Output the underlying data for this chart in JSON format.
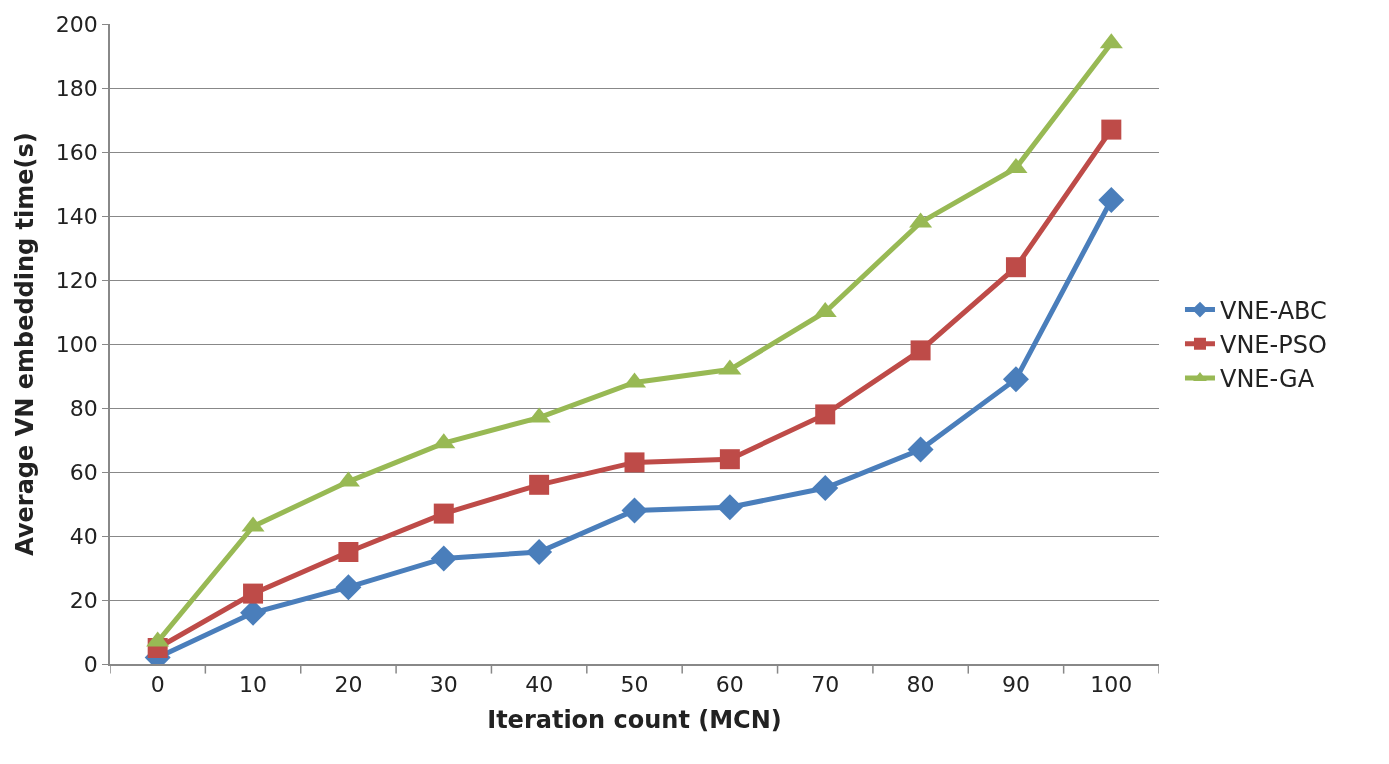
{
  "chart_data": {
    "type": "line",
    "xlabel": "Iteration count (MCN)",
    "ylabel": "Average VN embedding time(s)",
    "categories": [
      "0",
      "10",
      "20",
      "30",
      "40",
      "50",
      "60",
      "70",
      "80",
      "90",
      "100"
    ],
    "series": [
      {
        "name": "VNE-ABC",
        "color": "#4a7ebb",
        "marker": "diamond",
        "values": [
          2,
          16,
          24,
          33,
          35,
          48,
          49,
          55,
          67,
          89,
          145
        ]
      },
      {
        "name": "VNE-PSO",
        "color": "#be4b48",
        "marker": "square",
        "values": [
          5,
          22,
          35,
          47,
          56,
          63,
          64,
          78,
          98,
          124,
          167
        ]
      },
      {
        "name": "VNE-GA",
        "color": "#98b954",
        "marker": "triangle",
        "values": [
          7,
          43,
          57,
          69,
          77,
          88,
          92,
          110,
          138,
          155,
          194
        ]
      }
    ],
    "ylim": [
      0,
      200
    ],
    "yticks": [
      0,
      20,
      40,
      60,
      80,
      100,
      120,
      140,
      160,
      180,
      200
    ],
    "grid": "y",
    "legend": "right",
    "line_style": "solid"
  }
}
